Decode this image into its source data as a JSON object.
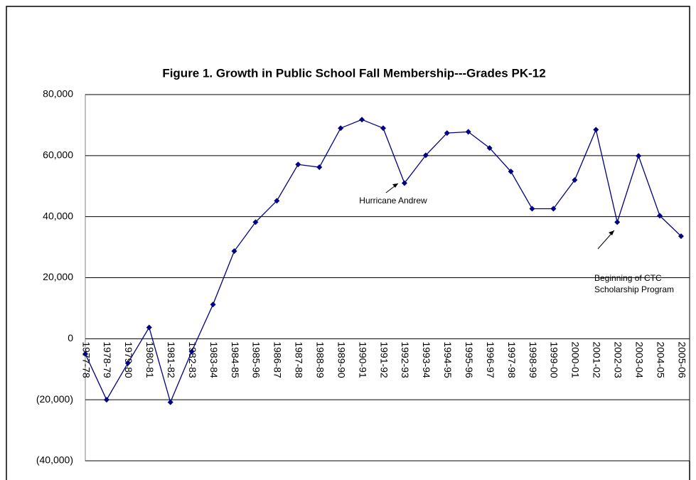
{
  "chart_data": {
    "type": "line",
    "title": "Figure 1.  Growth in Public School Fall Membership---Grades PK-12",
    "categories": [
      "1977-78",
      "1978-79",
      "1979-80",
      "1980-81",
      "1981-82",
      "1982-83",
      "1983-84",
      "1984-85",
      "1985-96",
      "1986-87",
      "1987-88",
      "1988-89",
      "1989-90",
      "1990-91",
      "1991-92",
      "1992-93",
      "1993-94",
      "1994-95",
      "1995-96",
      "1996-97",
      "1997-98",
      "1998-99",
      "1999-00",
      "2000-01",
      "2001-02",
      "2002-03",
      "2003-04",
      "2004-05",
      "2005-06"
    ],
    "series": [
      {
        "color": "#000080",
        "values": [
          -5000,
          -20000,
          -8000,
          3700,
          -20800,
          -4200,
          11200,
          28700,
          38200,
          45200,
          57100,
          56200,
          69000,
          71800,
          69000,
          51000,
          60100,
          67400,
          67800,
          62500,
          54800,
          42600,
          42600,
          52000,
          68500,
          38200,
          59900,
          40300,
          33600
        ]
      }
    ],
    "ylim": [
      -40000,
      80000
    ],
    "yticks": [
      {
        "value": -40000,
        "label": "(40,000)"
      },
      {
        "value": -20000,
        "label": "(20,000)"
      },
      0,
      {
        "value": 20000,
        "label": "20,000"
      },
      {
        "value": 40000,
        "label": "40,000"
      },
      {
        "value": 60000,
        "label": "60,000"
      },
      {
        "value": 80000,
        "label": "80,000"
      }
    ],
    "grid": true,
    "annotations": [
      "Hurricane Andrew",
      "Beginning of CTC",
      "Scholarship Program"
    ]
  }
}
